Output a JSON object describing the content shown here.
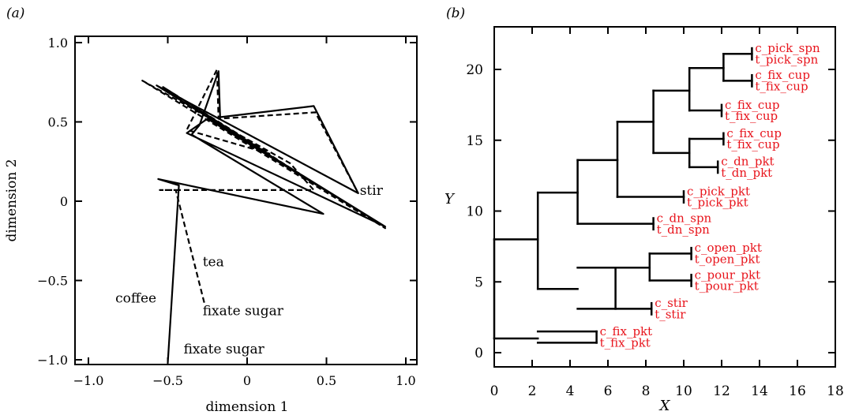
{
  "colors": {
    "axis": "#000000",
    "trace": "#000000",
    "leaf_label": "#e8141c"
  },
  "chart_data": [
    {
      "type": "line",
      "panel_label": "(a)",
      "xlabel": "dimension 1",
      "ylabel": "dimension 2",
      "xlim": [
        -1.0,
        1.0
      ],
      "ylim": [
        -1.0,
        1.0
      ],
      "xticks": [
        -1.0,
        -0.5,
        0,
        0.5,
        1.0
      ],
      "xtick_labels": [
        "−1.0",
        "−0.5",
        "0",
        "0.5",
        "1.0"
      ],
      "yticks": [
        -1.0,
        -0.5,
        0,
        0.5,
        1.0
      ],
      "ytick_labels": [
        "−1.0",
        "−0.5",
        "0",
        "0.5",
        "1.0"
      ],
      "grid": false,
      "series": [
        {
          "style": "solid",
          "points": [
            [
              -0.5,
              -1.02
            ],
            [
              -0.43,
              0.1
            ],
            [
              -0.56,
              0.14
            ],
            [
              0.48,
              -0.08
            ],
            [
              -0.35,
              0.42
            ],
            [
              -0.3,
              0.48
            ],
            [
              -0.18,
              0.82
            ],
            [
              -0.17,
              0.53
            ],
            [
              0.42,
              0.6
            ],
            [
              0.7,
              0.05
            ],
            [
              -0.57,
              0.73
            ],
            [
              0.87,
              -0.16
            ],
            [
              -0.25,
              0.52
            ],
            [
              -0.38,
              0.43
            ],
            [
              0.87,
              -0.16
            ]
          ]
        },
        {
          "style": "dashed",
          "points": [
            [
              -0.27,
              -0.64
            ],
            [
              -0.45,
              0.07
            ],
            [
              -0.55,
              0.07
            ],
            [
              0.42,
              0.07
            ],
            [
              0.27,
              0.24
            ],
            [
              -0.66,
              0.76
            ],
            [
              0.87,
              -0.17
            ],
            [
              -0.53,
              0.72
            ],
            [
              0.14,
              0.3
            ],
            [
              -0.38,
              0.45
            ],
            [
              -0.19,
              0.83
            ],
            [
              -0.18,
              0.52
            ],
            [
              0.43,
              0.56
            ],
            [
              0.7,
              0.05
            ]
          ]
        }
      ],
      "annotations": [
        {
          "text": "stir",
          "x": 0.71,
          "y": 0.04
        },
        {
          "text": "tea",
          "x": -0.28,
          "y": -0.41
        },
        {
          "text": "coffee",
          "x": -0.83,
          "y": -0.64
        },
        {
          "text": "fixate sugar",
          "x": -0.28,
          "y": -0.72
        },
        {
          "text": "fixate sugar",
          "x": -0.4,
          "y": -0.96
        }
      ]
    },
    {
      "type": "dendrogram",
      "panel_label": "(b)",
      "xlabel": "X",
      "ylabel": "Y",
      "xlim": [
        0,
        18
      ],
      "ylim": [
        -1,
        23
      ],
      "xticks": [
        0,
        2,
        4,
        6,
        8,
        10,
        12,
        14,
        16,
        18
      ],
      "xtick_labels": [
        "0",
        "2",
        "4",
        "6",
        "8",
        "10",
        "12",
        "14",
        "16",
        "18"
      ],
      "yticks": [
        0,
        5,
        10,
        15,
        20
      ],
      "ytick_labels": [
        "0",
        "5",
        "10",
        "15",
        "20"
      ],
      "grid": false,
      "leaves": [
        {
          "label": "c_pick_spn",
          "x": 13.6,
          "y": 21.5
        },
        {
          "label": "t_pick_spn",
          "x": 13.6,
          "y": 20.7
        },
        {
          "label": "c_fix_cup",
          "x": 13.6,
          "y": 19.6
        },
        {
          "label": "t_fix_cup",
          "x": 13.6,
          "y": 18.8
        },
        {
          "label": "c_fix_cup",
          "x": 12.0,
          "y": 17.5
        },
        {
          "label": "t_fix_cup",
          "x": 12.0,
          "y": 16.7
        },
        {
          "label": "c_fix_cup",
          "x": 12.1,
          "y": 15.5
        },
        {
          "label": "t_fix_cup",
          "x": 12.1,
          "y": 14.7
        },
        {
          "label": "c_dn_pkt",
          "x": 11.8,
          "y": 13.5
        },
        {
          "label": "t_dn_pkt",
          "x": 11.8,
          "y": 12.7
        },
        {
          "label": "c_pick_pkt",
          "x": 10.0,
          "y": 11.4
        },
        {
          "label": "t_pick_pkt",
          "x": 10.0,
          "y": 10.6
        },
        {
          "label": "c_dn_spn",
          "x": 8.4,
          "y": 9.5
        },
        {
          "label": "t_dn_spn",
          "x": 8.4,
          "y": 8.7
        },
        {
          "label": "c_open_pkt",
          "x": 10.4,
          "y": 7.4
        },
        {
          "label": "t_open_pkt",
          "x": 10.4,
          "y": 6.6
        },
        {
          "label": "c_pour_pkt",
          "x": 10.4,
          "y": 5.5
        },
        {
          "label": "t_pour_pkt",
          "x": 10.4,
          "y": 4.7
        },
        {
          "label": "c_stir",
          "x": 8.3,
          "y": 3.5
        },
        {
          "label": "t_stir",
          "x": 8.3,
          "y": 2.7
        },
        {
          "label": "c_fix_pkt",
          "x": 5.4,
          "y": 1.5
        },
        {
          "label": "t_fix_pkt",
          "x": 5.4,
          "y": 0.7
        }
      ],
      "merges": [
        {
          "x": 13.6,
          "y1": 20.7,
          "y2": 21.5
        },
        {
          "x": 13.6,
          "y1": 18.8,
          "y2": 19.6
        },
        {
          "x": 12.0,
          "y1": 16.7,
          "y2": 17.5
        },
        {
          "x": 12.1,
          "y1": 14.7,
          "y2": 15.5
        },
        {
          "x": 11.8,
          "y1": 12.7,
          "y2": 13.5
        },
        {
          "x": 10.0,
          "y1": 10.6,
          "y2": 11.4
        },
        {
          "x": 8.4,
          "y1": 8.7,
          "y2": 9.5
        },
        {
          "x": 10.4,
          "y1": 6.6,
          "y2": 7.4
        },
        {
          "x": 10.4,
          "y1": 4.7,
          "y2": 5.5
        },
        {
          "x": 8.3,
          "y1": 2.7,
          "y2": 3.5
        },
        {
          "x": 5.4,
          "y1": 0.7,
          "y2": 1.5
        },
        {
          "x": 12.1,
          "y1": 19.2,
          "y2": 21.1
        },
        {
          "x": 10.3,
          "y1": 17.1,
          "y2": 20.1
        },
        {
          "x": 10.3,
          "y1": 13.1,
          "y2": 15.1
        },
        {
          "x": 8.4,
          "y1": 14.1,
          "y2": 18.5
        },
        {
          "x": 6.5,
          "y1": 11.0,
          "y2": 16.3
        },
        {
          "x": 4.4,
          "y1": 9.1,
          "y2": 13.6
        },
        {
          "x": 8.2,
          "y1": 5.1,
          "y2": 7.0
        },
        {
          "x": 6.4,
          "y1": 3.1,
          "y2": 6.0
        },
        {
          "x": 2.3,
          "y1": 4.5,
          "y2": 11.3
        },
        {
          "x": 0.0,
          "y1": 1.0,
          "y2": 8.0
        }
      ],
      "links": [
        {
          "x1": 12.1,
          "x2": 13.6,
          "y": 21.1
        },
        {
          "x1": 12.1,
          "x2": 13.6,
          "y": 19.2
        },
        {
          "x1": 10.3,
          "x2": 12.0,
          "y": 17.1
        },
        {
          "x1": 10.3,
          "x2": 12.1,
          "y": 15.1
        },
        {
          "x1": 10.3,
          "x2": 11.8,
          "y": 13.1
        },
        {
          "x1": 10.3,
          "x2": 12.1,
          "y": 20.1
        },
        {
          "x1": 8.4,
          "x2": 10.3,
          "y": 18.5
        },
        {
          "x1": 8.4,
          "x2": 10.3,
          "y": 14.1
        },
        {
          "x1": 6.5,
          "x2": 8.4,
          "y": 16.3
        },
        {
          "x1": 6.5,
          "x2": 10.0,
          "y": 11.0
        },
        {
          "x1": 4.4,
          "x2": 6.5,
          "y": 13.6
        },
        {
          "x1": 4.4,
          "x2": 8.4,
          "y": 9.1
        },
        {
          "x1": 2.3,
          "x2": 4.4,
          "y": 11.3
        },
        {
          "x1": 8.2,
          "x2": 10.4,
          "y": 7.0
        },
        {
          "x1": 8.2,
          "x2": 10.4,
          "y": 5.1
        },
        {
          "x1": 6.4,
          "x2": 8.2,
          "y": 6.0
        },
        {
          "x1": 6.4,
          "x2": 8.3,
          "y": 3.1
        },
        {
          "x1": 4.4,
          "x2": 6.4,
          "y": 6.0
        },
        {
          "x1": 4.4,
          "x2": 6.4,
          "y": 3.1
        },
        {
          "x1": 2.3,
          "x2": 4.4,
          "y": 4.5
        },
        {
          "x1": 0.0,
          "x2": 2.3,
          "y": 8.0
        },
        {
          "x1": 0.0,
          "x2": 2.3,
          "y": 1.0
        },
        {
          "x1": 2.3,
          "x2": 5.4,
          "y": 1.5
        },
        {
          "x1": 2.3,
          "x2": 5.4,
          "y": 0.7
        }
      ]
    }
  ]
}
